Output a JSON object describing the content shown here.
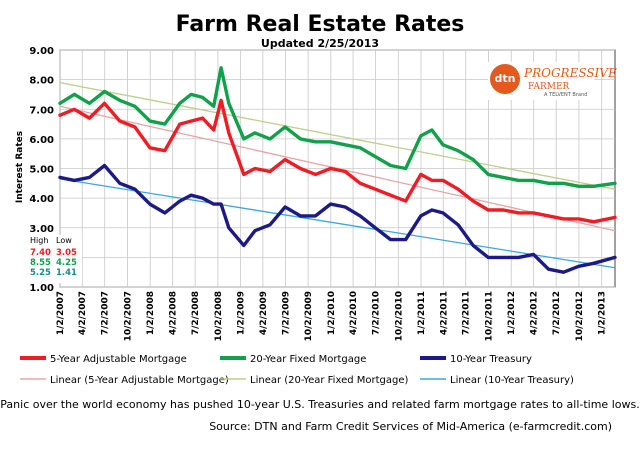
{
  "chart_data": {
    "type": "line",
    "title": "Farm Real Estate Rates",
    "subtitle": "Updated  2/25/2013",
    "ylabel": "Interest Rates",
    "ylim": [
      1,
      9
    ],
    "yticks": [
      "1.00",
      "2.00",
      "3.00",
      "4.00",
      "5.00",
      "6.00",
      "7.00",
      "8.00",
      "9.00"
    ],
    "xlim": [
      "2007-01-02",
      "2013-02-25"
    ],
    "x_tick_labels": [
      "1/2/2007",
      "4/2/2007",
      "7/2/2007",
      "10/2/2007",
      "1/2/2008",
      "4/2/2008",
      "7/2/2008",
      "10/2/2008",
      "1/2/2009",
      "4/2/2009",
      "7/2/2009",
      "10/2/2009",
      "1/2/2010",
      "4/2/2010",
      "7/2/2010",
      "10/2/2010",
      "1/2/2011",
      "4/2/2011",
      "7/2/2011",
      "10/2/2011",
      "1/2/2012",
      "4/2/2012",
      "7/2/2012",
      "10/2/2012",
      "1/2/2013"
    ],
    "grid": true,
    "legend_position": "bottom",
    "series": [
      {
        "name": "5-Year Adjustable Mortgage",
        "color": "#ee1c25",
        "style": "solid",
        "x": [
          "2007-01-02",
          "2007-03-01",
          "2007-05-01",
          "2007-07-01",
          "2007-09-01",
          "2007-11-01",
          "2008-01-01",
          "2008-03-01",
          "2008-05-01",
          "2008-06-15",
          "2008-08-01",
          "2008-09-15",
          "2008-10-15",
          "2008-11-15",
          "2009-01-15",
          "2009-03-01",
          "2009-05-01",
          "2009-07-01",
          "2009-09-01",
          "2009-11-01",
          "2010-01-01",
          "2010-03-01",
          "2010-05-01",
          "2010-07-01",
          "2010-09-01",
          "2010-11-01",
          "2011-01-01",
          "2011-02-15",
          "2011-04-01",
          "2011-06-01",
          "2011-08-01",
          "2011-10-01",
          "2011-12-01",
          "2012-02-01",
          "2012-04-01",
          "2012-06-01",
          "2012-08-01",
          "2012-10-01",
          "2012-12-01",
          "2013-02-25"
        ],
        "y": [
          6.8,
          7.0,
          6.7,
          7.2,
          6.6,
          6.4,
          5.7,
          5.6,
          6.5,
          6.6,
          6.7,
          6.3,
          7.3,
          6.2,
          4.8,
          5.0,
          4.9,
          5.3,
          5.0,
          4.8,
          5.0,
          4.9,
          4.5,
          4.3,
          4.1,
          3.9,
          4.8,
          4.6,
          4.6,
          4.3,
          3.9,
          3.6,
          3.6,
          3.5,
          3.5,
          3.4,
          3.3,
          3.3,
          3.2,
          3.35
        ]
      },
      {
        "name": "20-Year Fixed Mortgage",
        "color": "#12a14a",
        "style": "solid",
        "x": [
          "2007-01-02",
          "2007-03-01",
          "2007-05-01",
          "2007-07-01",
          "2007-09-01",
          "2007-11-01",
          "2008-01-01",
          "2008-03-01",
          "2008-05-01",
          "2008-06-15",
          "2008-08-01",
          "2008-09-15",
          "2008-10-15",
          "2008-11-15",
          "2009-01-15",
          "2009-03-01",
          "2009-05-01",
          "2009-07-01",
          "2009-09-01",
          "2009-11-01",
          "2010-01-01",
          "2010-03-01",
          "2010-05-01",
          "2010-07-01",
          "2010-09-01",
          "2010-11-01",
          "2011-01-01",
          "2011-02-15",
          "2011-04-01",
          "2011-06-01",
          "2011-08-01",
          "2011-10-01",
          "2011-12-01",
          "2012-02-01",
          "2012-04-01",
          "2012-06-01",
          "2012-08-01",
          "2012-10-01",
          "2012-12-01",
          "2013-02-25"
        ],
        "y": [
          7.2,
          7.5,
          7.2,
          7.6,
          7.3,
          7.1,
          6.6,
          6.5,
          7.2,
          7.5,
          7.4,
          7.1,
          8.4,
          7.2,
          6.0,
          6.2,
          6.0,
          6.4,
          6.0,
          5.9,
          5.9,
          5.8,
          5.7,
          5.4,
          5.1,
          5.0,
          6.1,
          6.3,
          5.8,
          5.6,
          5.3,
          4.8,
          4.7,
          4.6,
          4.6,
          4.5,
          4.5,
          4.4,
          4.4,
          4.5
        ]
      },
      {
        "name": "10-Year Treasury",
        "color": "#1c1a86",
        "style": "solid",
        "x": [
          "2007-01-02",
          "2007-03-01",
          "2007-05-01",
          "2007-07-01",
          "2007-09-01",
          "2007-11-01",
          "2008-01-01",
          "2008-03-01",
          "2008-05-01",
          "2008-06-15",
          "2008-08-01",
          "2008-09-15",
          "2008-10-15",
          "2008-11-15",
          "2009-01-15",
          "2009-03-01",
          "2009-05-01",
          "2009-07-01",
          "2009-09-01",
          "2009-11-01",
          "2010-01-01",
          "2010-03-01",
          "2010-05-01",
          "2010-07-01",
          "2010-09-01",
          "2010-11-01",
          "2011-01-01",
          "2011-02-15",
          "2011-04-01",
          "2011-06-01",
          "2011-08-01",
          "2011-10-01",
          "2011-12-01",
          "2012-02-01",
          "2012-04-01",
          "2012-06-01",
          "2012-08-01",
          "2012-10-01",
          "2012-12-01",
          "2013-02-25"
        ],
        "y": [
          4.7,
          4.6,
          4.7,
          5.1,
          4.5,
          4.3,
          3.8,
          3.5,
          3.9,
          4.1,
          4.0,
          3.8,
          3.8,
          3.0,
          2.4,
          2.9,
          3.1,
          3.7,
          3.4,
          3.4,
          3.8,
          3.7,
          3.4,
          3.0,
          2.6,
          2.6,
          3.4,
          3.6,
          3.5,
          3.1,
          2.4,
          2.0,
          2.0,
          2.0,
          2.1,
          1.6,
          1.5,
          1.7,
          1.8,
          2.0
        ]
      },
      {
        "name": "Linear (5-Year Adjustable Mortgage)",
        "color": "#e7a5a5",
        "style": "trend",
        "x": [
          "2007-01-02",
          "2013-02-25"
        ],
        "y": [
          7.1,
          2.9
        ]
      },
      {
        "name": "Linear (20-Year Fixed Mortgage)",
        "color": "#bccf8b",
        "style": "trend",
        "x": [
          "2007-01-02",
          "2013-02-25"
        ],
        "y": [
          7.9,
          4.3
        ]
      },
      {
        "name": "Linear (10-Year Treasury)",
        "color": "#3aa8dc",
        "style": "trend",
        "x": [
          "2007-01-02",
          "2013-02-25"
        ],
        "y": [
          4.65,
          1.65
        ]
      }
    ],
    "high_low_box": {
      "headers": [
        "High",
        "Low"
      ],
      "rows": [
        {
          "high": "7.40",
          "low": "3.05",
          "color": "#ee1c25"
        },
        {
          "high": "8.55",
          "low": "4.25",
          "color": "#12a14a"
        },
        {
          "high": "5.25",
          "low": "1.41",
          "color": "#1a8a8a"
        }
      ]
    }
  },
  "logo": {
    "badge": "dtn",
    "name": "PROGRESSIVE",
    "sub": "FARMER",
    "brand": "A TELVENT Brand"
  },
  "footer": {
    "note": "Panic over the world economy has pushed  10-year U.S. Treasuries and related farm mortgage rates to all-time  lows.",
    "source": "Source: DTN  and Farm  Credit Services of Mid-America  (e-farmcredit.com)"
  }
}
